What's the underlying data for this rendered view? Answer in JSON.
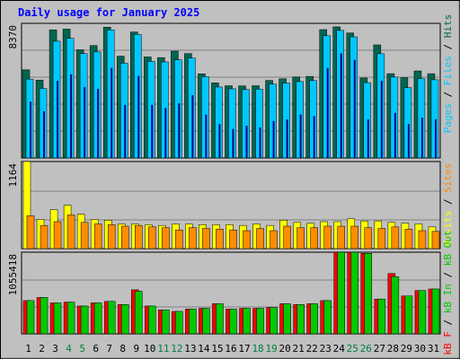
{
  "title": "Daily usage for January 2025",
  "colors": {
    "background": "#c0c0c0",
    "plot_bg": "#c0c0c0",
    "title": "#0000ff",
    "hits": "#006651",
    "files": "#00c8ff",
    "pages": "#00008c",
    "visits": "#ffff00",
    "sites": "#ff8c00",
    "kbin": "#00c800",
    "kbout": "#ff0000",
    "weekend_label": "#008040"
  },
  "chart_data": [
    {
      "type": "bar",
      "panel": "top",
      "ymax_label": "8370",
      "ymax": 8370,
      "legend_parts": [
        "Pages",
        "Files",
        "Hits"
      ],
      "categories": [
        "1",
        "2",
        "3",
        "4",
        "5",
        "6",
        "7",
        "8",
        "9",
        "10",
        "11",
        "12",
        "13",
        "14",
        "15",
        "16",
        "17",
        "18",
        "19",
        "20",
        "21",
        "22",
        "23",
        "24",
        "25",
        "26",
        "27",
        "28",
        "29",
        "30",
        "31"
      ],
      "series": [
        {
          "name": "Hits",
          "values": [
            5480,
            4840,
            7960,
            8010,
            6730,
            6990,
            8130,
            6330,
            7830,
            6280,
            6240,
            6640,
            6490,
            5230,
            4670,
            4490,
            4480,
            4490,
            4820,
            4920,
            5040,
            5070,
            7980,
            8150,
            7770,
            4970,
            7030,
            5240,
            4990,
            5410,
            5240
          ]
        },
        {
          "name": "Files",
          "values": [
            4900,
            4320,
            7260,
            7440,
            6490,
            6590,
            7960,
            5890,
            7680,
            6000,
            5970,
            6100,
            6210,
            5050,
            4410,
            4300,
            4250,
            4280,
            4590,
            4660,
            4750,
            4810,
            7600,
            7930,
            7530,
            4680,
            6480,
            5030,
            4370,
            4930,
            4860
          ]
        },
        {
          "name": "Pages",
          "values": [
            3500,
            2900,
            4800,
            5200,
            4400,
            4300,
            5600,
            3300,
            5100,
            3300,
            3100,
            3400,
            3900,
            2700,
            2100,
            1800,
            2000,
            1900,
            2300,
            2400,
            2700,
            2600,
            5600,
            6500,
            6100,
            2400,
            4800,
            2800,
            2100,
            2500,
            2400
          ]
        }
      ]
    },
    {
      "type": "bar",
      "panel": "middle",
      "ymax_label": "1164",
      "ymax": 1164,
      "legend_parts": [
        "Visits",
        "Sites"
      ],
      "categories": [
        "1",
        "2",
        "3",
        "4",
        "5",
        "6",
        "7",
        "8",
        "9",
        "10",
        "11",
        "12",
        "13",
        "14",
        "15",
        "16",
        "17",
        "18",
        "19",
        "20",
        "21",
        "22",
        "23",
        "24",
        "25",
        "26",
        "27",
        "28",
        "29",
        "30",
        "31"
      ],
      "series": [
        {
          "name": "Visits",
          "values": [
            1164,
            390,
            520,
            580,
            460,
            390,
            380,
            330,
            330,
            320,
            310,
            330,
            330,
            320,
            320,
            320,
            310,
            330,
            310,
            380,
            350,
            340,
            360,
            360,
            400,
            370,
            370,
            350,
            340,
            330,
            290
          ]
        },
        {
          "name": "Sites",
          "values": [
            440,
            310,
            360,
            450,
            350,
            330,
            320,
            300,
            310,
            290,
            280,
            250,
            280,
            270,
            260,
            250,
            240,
            270,
            240,
            300,
            280,
            280,
            300,
            300,
            300,
            280,
            270,
            290,
            260,
            240,
            230
          ]
        }
      ]
    },
    {
      "type": "bar",
      "panel": "bottom",
      "ymax_label": "1055418",
      "ymax": 1055418,
      "legend_parts": [
        "kB F",
        "kB In",
        "kB Out"
      ],
      "categories": [
        "1",
        "2",
        "3",
        "4",
        "5",
        "6",
        "7",
        "8",
        "9",
        "10",
        "11",
        "12",
        "13",
        "14",
        "15",
        "16",
        "17",
        "18",
        "19",
        "20",
        "21",
        "22",
        "23",
        "24",
        "25",
        "26",
        "27",
        "28",
        "29",
        "30",
        "31"
      ],
      "series": [
        {
          "name": "kB In",
          "values": [
            430000,
            470000,
            400000,
            410000,
            360000,
            400000,
            420000,
            380000,
            550000,
            360000,
            310000,
            290000,
            320000,
            330000,
            390000,
            320000,
            330000,
            330000,
            340000,
            390000,
            380000,
            390000,
            430000,
            1055418,
            1055418,
            1040000,
            450000,
            740000,
            490000,
            560000,
            580000
          ]
        },
        {
          "name": "kB Out",
          "values": [
            430000,
            470000,
            400000,
            410000,
            360000,
            400000,
            420000,
            380000,
            570000,
            360000,
            310000,
            290000,
            320000,
            330000,
            390000,
            320000,
            330000,
            330000,
            340000,
            390000,
            380000,
            390000,
            430000,
            1055418,
            1055418,
            1040000,
            450000,
            780000,
            490000,
            560000,
            580000
          ]
        }
      ]
    }
  ],
  "weekend_days": [
    "4",
    "5",
    "11",
    "12",
    "18",
    "19",
    "25",
    "26"
  ]
}
